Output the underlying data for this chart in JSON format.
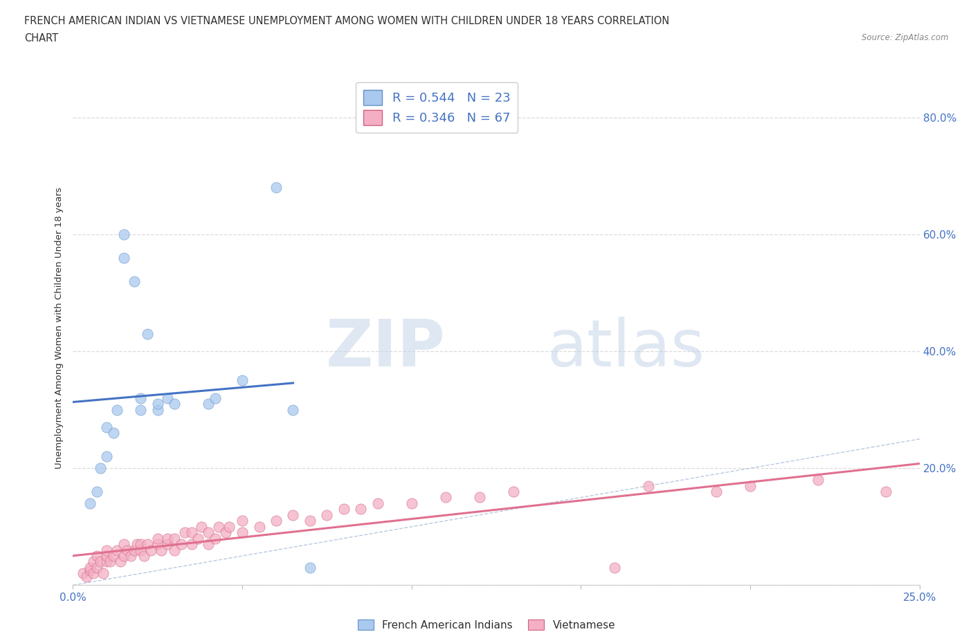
{
  "title_line1": "FRENCH AMERICAN INDIAN VS VIETNAMESE UNEMPLOYMENT AMONG WOMEN WITH CHILDREN UNDER 18 YEARS CORRELATION",
  "title_line2": "CHART",
  "source": "Source: ZipAtlas.com",
  "ylabel": "Unemployment Among Women with Children Under 18 years",
  "xlim": [
    0.0,
    0.25
  ],
  "ylim": [
    0.0,
    0.88
  ],
  "french_color": "#aac9ee",
  "vietnamese_color": "#f4afc4",
  "french_line_color": "#4472c4",
  "vietnamese_line_color": "#e07090",
  "diagonal_color": "#b0c4de",
  "r_french": 0.544,
  "n_french": 23,
  "r_vietnamese": 0.346,
  "n_vietnamese": 67,
  "watermark_zip": "ZIP",
  "watermark_atlas": "atlas",
  "french_scatter_x": [
    0.005,
    0.007,
    0.008,
    0.01,
    0.01,
    0.012,
    0.013,
    0.015,
    0.015,
    0.018,
    0.02,
    0.02,
    0.022,
    0.025,
    0.025,
    0.028,
    0.03,
    0.04,
    0.042,
    0.05,
    0.06,
    0.065,
    0.07
  ],
  "french_scatter_y": [
    0.14,
    0.16,
    0.2,
    0.22,
    0.27,
    0.26,
    0.3,
    0.6,
    0.56,
    0.52,
    0.32,
    0.3,
    0.43,
    0.3,
    0.31,
    0.32,
    0.31,
    0.31,
    0.32,
    0.35,
    0.68,
    0.3,
    0.03
  ],
  "vietnamese_scatter_x": [
    0.003,
    0.004,
    0.005,
    0.005,
    0.006,
    0.006,
    0.007,
    0.007,
    0.008,
    0.009,
    0.01,
    0.01,
    0.01,
    0.011,
    0.012,
    0.013,
    0.014,
    0.015,
    0.015,
    0.016,
    0.017,
    0.018,
    0.019,
    0.02,
    0.02,
    0.021,
    0.022,
    0.023,
    0.025,
    0.025,
    0.026,
    0.028,
    0.028,
    0.03,
    0.03,
    0.032,
    0.033,
    0.035,
    0.035,
    0.037,
    0.038,
    0.04,
    0.04,
    0.042,
    0.043,
    0.045,
    0.046,
    0.05,
    0.05,
    0.055,
    0.06,
    0.065,
    0.07,
    0.075,
    0.08,
    0.085,
    0.09,
    0.1,
    0.11,
    0.12,
    0.13,
    0.17,
    0.19,
    0.2,
    0.22,
    0.24,
    0.16
  ],
  "vietnamese_scatter_y": [
    0.02,
    0.015,
    0.025,
    0.03,
    0.02,
    0.04,
    0.03,
    0.05,
    0.04,
    0.02,
    0.04,
    0.05,
    0.06,
    0.04,
    0.05,
    0.06,
    0.04,
    0.05,
    0.07,
    0.06,
    0.05,
    0.06,
    0.07,
    0.06,
    0.07,
    0.05,
    0.07,
    0.06,
    0.07,
    0.08,
    0.06,
    0.07,
    0.08,
    0.06,
    0.08,
    0.07,
    0.09,
    0.07,
    0.09,
    0.08,
    0.1,
    0.07,
    0.09,
    0.08,
    0.1,
    0.09,
    0.1,
    0.09,
    0.11,
    0.1,
    0.11,
    0.12,
    0.11,
    0.12,
    0.13,
    0.13,
    0.14,
    0.14,
    0.15,
    0.15,
    0.16,
    0.17,
    0.16,
    0.17,
    0.18,
    0.16,
    0.03
  ],
  "background_color": "#ffffff",
  "grid_color": "#d8d8d8",
  "title_color": "#303030",
  "tick_color": "#4472c4",
  "french_line_start_x": 0.0,
  "french_line_end_x": 0.065,
  "vietnamese_line_start_x": 0.0,
  "vietnamese_line_end_x": 0.25
}
